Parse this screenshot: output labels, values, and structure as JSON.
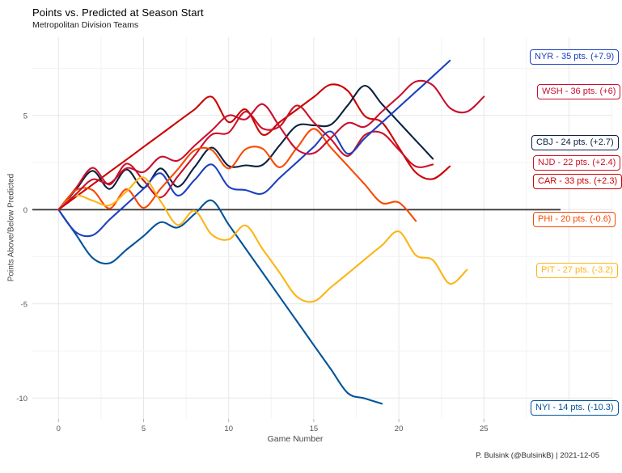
{
  "chart_data": {
    "type": "line",
    "title": "Points vs. Predicted at Season Start",
    "subtitle": "Metropolitan Division Teams",
    "caption": "P. Bulsink (@BulsinkB) | 2021-12-05",
    "xlabel": "Game Number",
    "ylabel": "Points Above/Below Predicted",
    "x_ticks": [
      0,
      5,
      10,
      15,
      20,
      25
    ],
    "y_ticks": [
      5,
      0,
      -5,
      -10
    ],
    "xlim": [
      0,
      32.5
    ],
    "ylim": [
      -11.1,
      9.1
    ],
    "grid": "on",
    "zero_line": {
      "y": 0,
      "color": "#3a3a3a"
    },
    "legend_position": "right-labels",
    "series": [
      {
        "team": "CAR",
        "points": 33,
        "diff": "+2.3",
        "label": "CAR - 33 pts. (+2.3)",
        "color": "#CC0000",
        "label_pos": {
          "x": 659,
          "y": 224
        },
        "values": [
          0,
          0.67,
          1.33,
          2.0,
          2.66,
          3.33,
          3.99,
          4.66,
          5.32,
          5.99,
          4.65,
          5.32,
          3.98,
          4.65,
          5.31,
          5.98,
          6.64,
          6.31,
          4.97,
          4.64,
          3.3,
          1.97,
          1.63,
          2.3
        ]
      },
      {
        "team": "CBJ",
        "points": 24,
        "diff": "+2.7",
        "label": "CBJ - 24 pts. (+2.7)",
        "color": "#0A2240",
        "label_pos": {
          "x": 657,
          "y": 176
        },
        "values": [
          0,
          1.03,
          2.06,
          1.1,
          2.13,
          1.16,
          2.19,
          1.22,
          2.26,
          3.29,
          2.32,
          2.35,
          2.38,
          3.42,
          4.45,
          4.48,
          4.51,
          5.54,
          6.58,
          5.61,
          4.64,
          3.67,
          2.7
        ]
      },
      {
        "team": "NJD",
        "points": 22,
        "diff": "+2.4",
        "label": "NJD - 22 pts. (+2.4)",
        "color": "#CE1126",
        "label_pos": {
          "x": 659,
          "y": 201
        },
        "values": [
          0,
          1.11,
          2.22,
          1.33,
          2.44,
          1.55,
          0.65,
          1.76,
          2.87,
          3.98,
          4.09,
          5.2,
          4.31,
          4.42,
          5.53,
          4.64,
          3.75,
          2.85,
          3.96,
          4.07,
          3.18,
          2.29,
          2.4
        ]
      },
      {
        "team": "NYI",
        "points": 14,
        "diff": "-10.3",
        "label": "NYI - 14 pts. (-10.3)",
        "color": "#00539B",
        "label_pos": {
          "x": 656,
          "y": 504
        },
        "values": [
          0,
          -1.28,
          -2.56,
          -2.84,
          -2.12,
          -1.4,
          -0.67,
          -0.95,
          -0.23,
          0.49,
          -0.79,
          -2.07,
          -3.35,
          -4.63,
          -5.91,
          -7.19,
          -8.46,
          -9.74,
          -10.02,
          -10.3
        ]
      },
      {
        "team": "NYR",
        "points": 35,
        "diff": "+7.9",
        "label": "NYR - 35 pts. (+7.9)",
        "color": "#1C40C0",
        "label_pos": {
          "x": 655,
          "y": 70
        },
        "values": [
          0,
          -1.18,
          -1.36,
          -0.53,
          0.29,
          1.11,
          1.93,
          0.75,
          1.58,
          2.4,
          1.22,
          1.04,
          0.86,
          1.69,
          2.51,
          3.33,
          4.15,
          2.97,
          3.8,
          4.62,
          5.44,
          6.26,
          7.08,
          7.91
        ]
      },
      {
        "team": "PHI",
        "points": 20,
        "diff": "-0.6",
        "label": "PHI - 20 pts. (-0.6)",
        "color": "#F74902",
        "label_pos": {
          "x": 659,
          "y": 271
        },
        "values": [
          0,
          1.02,
          1.04,
          0.06,
          1.08,
          0.1,
          1.11,
          2.13,
          3.15,
          3.17,
          2.19,
          3.21,
          3.23,
          2.25,
          3.27,
          4.29,
          3.3,
          2.32,
          1.34,
          0.36,
          0.38,
          -0.6
        ]
      },
      {
        "team": "PIT",
        "points": 27,
        "diff": "-3.2",
        "label": "PIT - 27 pts. (-3.2)",
        "color": "#FCB514",
        "label_pos": {
          "x": 663,
          "y": 334
        },
        "values": [
          0,
          0.74,
          0.48,
          0.23,
          0.97,
          1.71,
          0.45,
          -0.81,
          -0.06,
          -1.32,
          -1.58,
          -0.84,
          -2.1,
          -3.35,
          -4.61,
          -4.87,
          -4.13,
          -3.39,
          -2.64,
          -1.9,
          -1.16,
          -2.42,
          -2.68,
          -3.93,
          -3.19
        ]
      },
      {
        "team": "WSH",
        "points": 36,
        "diff": "+6",
        "label": "WSH - 36 pts. (+6)",
        "color": "#C8102E",
        "label_pos": {
          "x": 664,
          "y": 113
        },
        "values": [
          0,
          0.8,
          1.6,
          1.4,
          2.2,
          2.0,
          2.8,
          2.6,
          3.4,
          4.2,
          5.0,
          4.8,
          5.6,
          4.4,
          3.2,
          3.0,
          3.8,
          4.6,
          4.4,
          5.2,
          6.0,
          6.8,
          6.6,
          5.4,
          5.2,
          6.0
        ]
      }
    ]
  }
}
